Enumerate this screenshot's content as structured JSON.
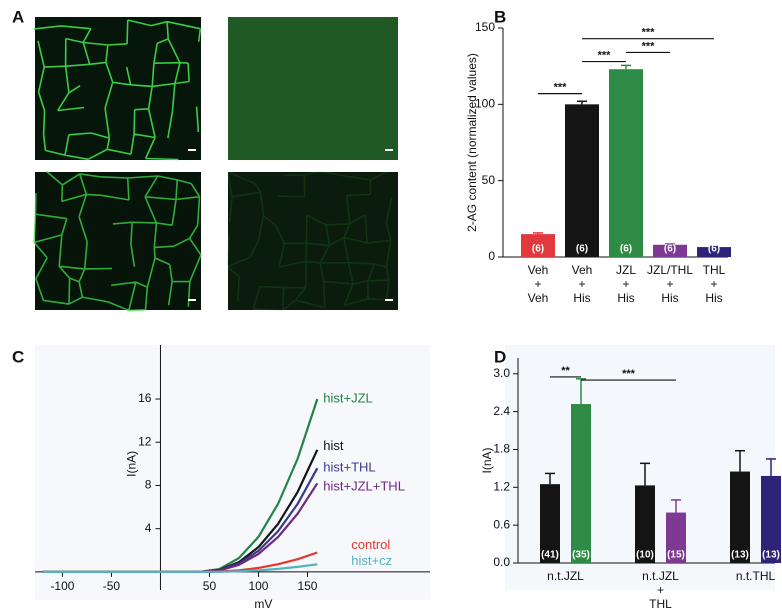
{
  "panel_a": {
    "label": "A"
  },
  "chart_data": [
    {
      "panel_label": "B",
      "type": "bar",
      "ylabel": "2-AG content (normalized values)",
      "categories": [
        [
          "Veh",
          "+",
          "Veh"
        ],
        [
          "Veh",
          "+",
          "His"
        ],
        [
          "JZL",
          "+",
          "His"
        ],
        [
          "JZL/THL",
          "+",
          "His"
        ],
        [
          "THL",
          "+",
          "His"
        ]
      ],
      "values": [
        15,
        100,
        123,
        8,
        6.5
      ],
      "errors": [
        0.8,
        2,
        2.5,
        0.5,
        0.4
      ],
      "colors": [
        "#e2393e",
        "#141414",
        "#2e8b45",
        "#7e3a93",
        "#2d2378"
      ],
      "n_labels": [
        "(6)",
        "(6)",
        "(6)",
        "(6)",
        "(6)"
      ],
      "ylim": [
        0,
        150
      ],
      "yticks": [
        0,
        50,
        100,
        150
      ],
      "significance": [
        {
          "from": 0,
          "to": 1,
          "y": 107,
          "label": "***"
        },
        {
          "from": 1,
          "to": 2,
          "y": 128,
          "label": "***"
        },
        {
          "from": 2,
          "to": 3,
          "y": 134,
          "label": "***"
        },
        {
          "from": 1,
          "to": 4,
          "y": 143,
          "label": "***"
        }
      ]
    },
    {
      "panel_label": "C",
      "type": "line",
      "xlabel": "mV",
      "ylabel": "I(nA)",
      "x": [
        -120,
        -100,
        -80,
        -60,
        -40,
        -20,
        0,
        20,
        40,
        60,
        80,
        100,
        120,
        140,
        160
      ],
      "series": [
        {
          "name": "hist+JZL",
          "color": "#24834a",
          "values": [
            0,
            0,
            0,
            0,
            0,
            0,
            0,
            0,
            0,
            0.26,
            1.28,
            3.25,
            6.3,
            10.5,
            16
          ]
        },
        {
          "name": "hist",
          "color": "#141414",
          "values": [
            0,
            0,
            0,
            0,
            0,
            0,
            0,
            0,
            0,
            0.18,
            0.9,
            2.3,
            4.45,
            7.4,
            11.3
          ]
        },
        {
          "name": "hist+THL",
          "color": "#3a3a8f",
          "values": [
            0,
            0,
            0,
            0,
            0,
            0,
            0,
            0,
            0,
            0.15,
            0.77,
            1.95,
            3.78,
            6.3,
            9.6
          ]
        },
        {
          "name": "hist+JZL+THL",
          "color": "#6e2a80",
          "values": [
            0,
            0,
            0,
            0,
            0,
            0,
            0,
            0,
            0,
            0.13,
            0.66,
            1.66,
            3.23,
            5.4,
            8.2
          ]
        },
        {
          "name": "control",
          "color": "#e2392c",
          "values": [
            0,
            0,
            0,
            0,
            0,
            0,
            0,
            0,
            0,
            0.03,
            0.14,
            0.37,
            0.71,
            1.18,
            1.8
          ]
        },
        {
          "name": "hist+cz",
          "color": "#4fb3c0",
          "values": [
            0,
            0,
            0,
            0,
            0,
            0,
            0,
            0,
            0,
            0.01,
            0.06,
            0.14,
            0.28,
            0.46,
            0.7
          ]
        }
      ],
      "xlim": [
        -128,
        275
      ],
      "ylim": [
        -2.6,
        21
      ],
      "xticks": [
        -100,
        -50,
        50,
        100,
        150
      ],
      "yticks": [
        4,
        8,
        12,
        16
      ]
    },
    {
      "panel_label": "D",
      "type": "bar",
      "ylabel": "I(nA)",
      "categories": [
        [
          "n.t.JZL"
        ],
        [
          "n.t.JZL",
          "+",
          "THL"
        ],
        [
          "n.t.THL"
        ]
      ],
      "series": [
        {
          "color": "#141414",
          "values": [
            1.25,
            1.23,
            1.45
          ],
          "errors": [
            0.17,
            0.35,
            0.33
          ],
          "n_labels": [
            "(41)",
            "(10)",
            "(13)"
          ]
        },
        {
          "colors": [
            "#2e8b45",
            "#7e3a93",
            "#2d2378"
          ],
          "values": [
            2.52,
            0.8,
            1.38
          ],
          "errors": [
            0.4,
            0.2,
            0.27
          ],
          "n_labels": [
            "(35)",
            "(15)",
            "(13)"
          ]
        }
      ],
      "ylim": [
        0,
        3.25
      ],
      "yticks": [
        {
          "value": 0,
          "label": "0.0"
        },
        0.6,
        1.2,
        1.8,
        2.4,
        {
          "value": 3,
          "label": "3.0"
        }
      ],
      "significance": [
        {
          "from": [
            0,
            0
          ],
          "to": [
            0,
            1
          ],
          "y": 2.95,
          "label": "**"
        },
        {
          "from": [
            0,
            1
          ],
          "to": [
            1,
            1
          ],
          "y": 2.9,
          "label": "***"
        }
      ]
    }
  ]
}
